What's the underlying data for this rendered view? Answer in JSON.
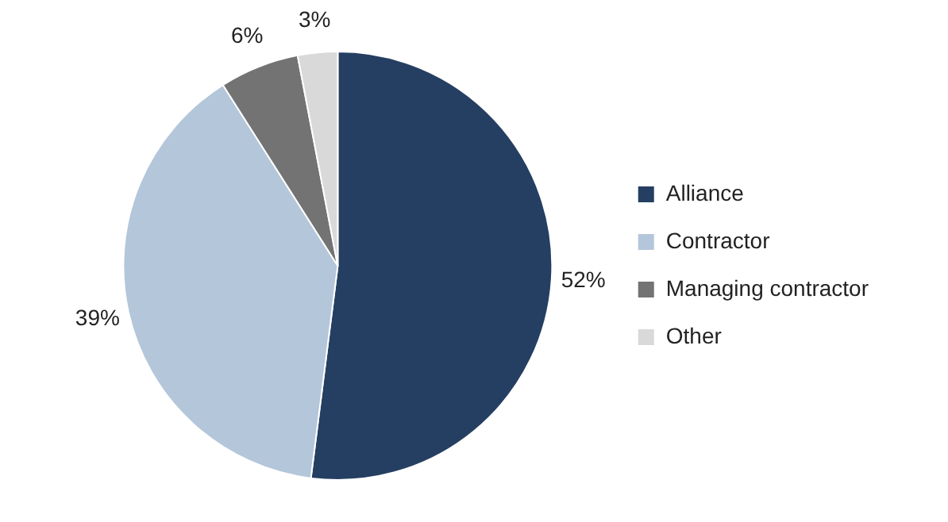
{
  "chart_data": {
    "type": "pie",
    "categories": [
      "Alliance",
      "Contractor",
      "Managing contractor",
      "Other"
    ],
    "values": [
      52,
      39,
      6,
      3
    ],
    "value_labels": [
      "52%",
      "39%",
      "6%",
      "3%"
    ],
    "colors": [
      "#253f62",
      "#b4c6da",
      "#737373",
      "#d9d9d9"
    ],
    "legend": "right"
  }
}
